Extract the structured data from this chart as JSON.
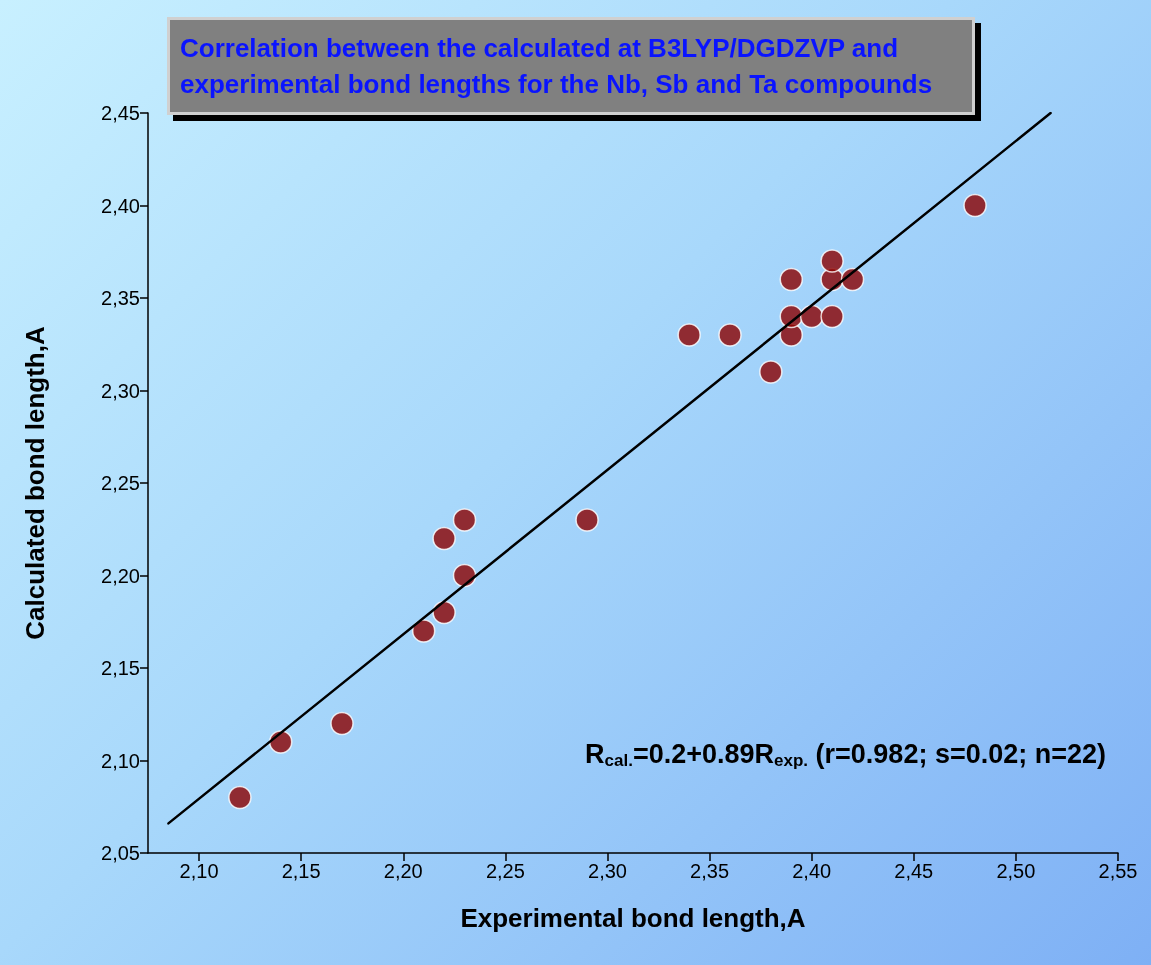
{
  "chart_data": {
    "type": "scatter",
    "title": "Correlation between the calculated at B3LYP/DGDZVP and experimental bond lengths for the Nb, Sb and Ta compounds",
    "xlabel": "Experimental bond length,A",
    "ylabel": "Calculated bond length,A",
    "annotations": [
      "R$_{cal.}$=0.2+0.89R$_{exp.}$ (r=0.982; s=0.02; n=22)"
    ],
    "marker": "circle",
    "grid": false,
    "xlim": [
      2.075,
      2.55
    ],
    "ylim": [
      2.05,
      2.45
    ],
    "xticks": [
      {
        "value": 2.1,
        "label": "2,10"
      },
      {
        "value": 2.15,
        "label": "2,15"
      },
      {
        "value": 2.2,
        "label": "2,20"
      },
      {
        "value": 2.25,
        "label": "2,25"
      },
      {
        "value": 2.3,
        "label": "2,30"
      },
      {
        "value": 2.35,
        "label": "2,35"
      },
      {
        "value": 2.4,
        "label": "2,40"
      },
      {
        "value": 2.45,
        "label": "2,45"
      },
      {
        "value": 2.5,
        "label": "2,50"
      },
      {
        "value": 2.55,
        "label": "2,55"
      }
    ],
    "yticks": [
      {
        "value": 2.05,
        "label": "2,05"
      },
      {
        "value": 2.1,
        "label": "2,10"
      },
      {
        "value": 2.15,
        "label": "2,15"
      },
      {
        "value": 2.2,
        "label": "2,20"
      },
      {
        "value": 2.25,
        "label": "2,25"
      },
      {
        "value": 2.3,
        "label": "2,30"
      },
      {
        "value": 2.35,
        "label": "2,35"
      },
      {
        "value": 2.4,
        "label": "2,40"
      },
      {
        "value": 2.45,
        "label": "2,45"
      }
    ],
    "series": [
      {
        "color": "#8b0000",
        "x": [
          2.12,
          2.14,
          2.17,
          2.21,
          2.22,
          2.22,
          2.23,
          2.23,
          2.29,
          2.34,
          2.36,
          2.38,
          2.39,
          2.39,
          2.39,
          2.4,
          2.41,
          2.41,
          2.41,
          2.42,
          2.48
        ],
        "values": [
          2.08,
          2.11,
          2.12,
          2.17,
          2.18,
          2.22,
          2.2,
          2.23,
          2.23,
          2.33,
          2.33,
          2.31,
          2.33,
          2.34,
          2.36,
          2.34,
          2.34,
          2.36,
          2.37,
          2.36,
          2.4
        ]
      },
      {
        "type": "line",
        "color": "#000000",
        "marker": "none",
        "x": [
          2.085,
          2.517
        ],
        "values": [
          2.066,
          2.45
        ]
      }
    ]
  }
}
